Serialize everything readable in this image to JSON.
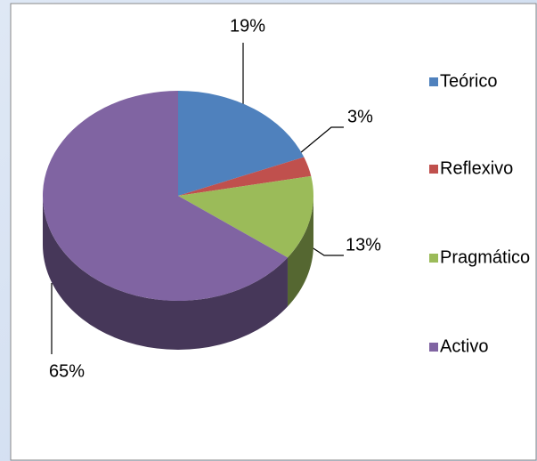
{
  "chart_data": {
    "type": "pie",
    "categories": [
      "Teórico",
      "Reflexivo",
      "Pragmático",
      "Activo"
    ],
    "values": [
      19,
      3,
      13,
      65
    ],
    "value_labels": [
      "19%",
      "3%",
      "13%",
      "65%"
    ],
    "colors": [
      "#4f81bd",
      "#c0504d",
      "#9bbb59",
      "#8064a2"
    ],
    "legend": "right"
  }
}
